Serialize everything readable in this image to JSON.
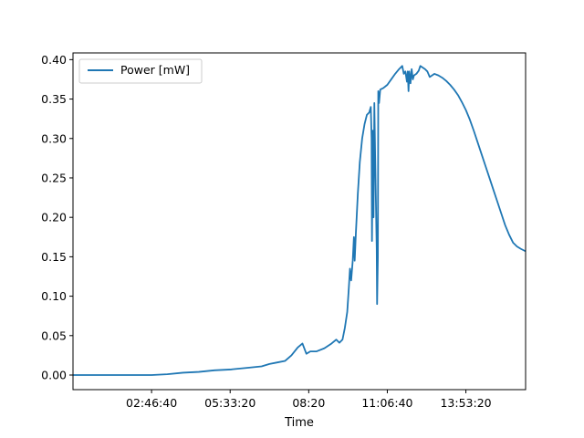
{
  "chart_data": {
    "type": "line",
    "title": "",
    "xlabel": "Time",
    "ylabel": "",
    "grid": false,
    "legend_position": "top-left",
    "x_unit": "seconds",
    "xlim": [
      0,
      57600
    ],
    "ylim": [
      -0.0185,
      0.4085
    ],
    "x_ticks": [
      {
        "value": 10000,
        "label": "02:46:40"
      },
      {
        "value": 20000,
        "label": "05:33:20"
      },
      {
        "value": 30000,
        "label": "08:20"
      },
      {
        "value": 40000,
        "label": "11:06:40"
      },
      {
        "value": 50000,
        "label": "13:53:20"
      }
    ],
    "y_ticks": [
      {
        "value": 0.0,
        "label": "0.00"
      },
      {
        "value": 0.05,
        "label": "0.05"
      },
      {
        "value": 0.1,
        "label": "0.10"
      },
      {
        "value": 0.15,
        "label": "0.15"
      },
      {
        "value": 0.2,
        "label": "0.20"
      },
      {
        "value": 0.25,
        "label": "0.25"
      },
      {
        "value": 0.3,
        "label": "0.30"
      },
      {
        "value": 0.35,
        "label": "0.35"
      },
      {
        "value": 0.4,
        "label": "0.40"
      }
    ],
    "series": [
      {
        "name": "Power [mW]",
        "color": "#1f77b4",
        "points": [
          [
            0,
            0.0
          ],
          [
            10000,
            0.0
          ],
          [
            12000,
            0.001
          ],
          [
            14000,
            0.003
          ],
          [
            16000,
            0.004
          ],
          [
            18000,
            0.006
          ],
          [
            20000,
            0.007
          ],
          [
            22000,
            0.009
          ],
          [
            24000,
            0.011
          ],
          [
            25000,
            0.014
          ],
          [
            26000,
            0.016
          ],
          [
            27000,
            0.018
          ],
          [
            27800,
            0.025
          ],
          [
            28600,
            0.035
          ],
          [
            29200,
            0.04
          ],
          [
            29700,
            0.027
          ],
          [
            30200,
            0.03
          ],
          [
            31000,
            0.03
          ],
          [
            32000,
            0.034
          ],
          [
            32900,
            0.04
          ],
          [
            33500,
            0.045
          ],
          [
            33900,
            0.041
          ],
          [
            34300,
            0.045
          ],
          [
            34600,
            0.06
          ],
          [
            34900,
            0.08
          ],
          [
            35100,
            0.11
          ],
          [
            35250,
            0.135
          ],
          [
            35400,
            0.12
          ],
          [
            35600,
            0.145
          ],
          [
            35750,
            0.175
          ],
          [
            35850,
            0.145
          ],
          [
            36000,
            0.18
          ],
          [
            36100,
            0.2
          ],
          [
            36250,
            0.23
          ],
          [
            36500,
            0.27
          ],
          [
            36800,
            0.3
          ],
          [
            37100,
            0.318
          ],
          [
            37400,
            0.33
          ],
          [
            37700,
            0.333
          ],
          [
            37900,
            0.34
          ],
          [
            38000,
            0.3
          ],
          [
            38050,
            0.17
          ],
          [
            38150,
            0.31
          ],
          [
            38250,
            0.2
          ],
          [
            38350,
            0.345
          ],
          [
            38450,
            0.28
          ],
          [
            38550,
            0.22
          ],
          [
            38650,
            0.16
          ],
          [
            38700,
            0.09
          ],
          [
            38800,
            0.15
          ],
          [
            38850,
            0.36
          ],
          [
            38950,
            0.345
          ],
          [
            39100,
            0.362
          ],
          [
            39500,
            0.364
          ],
          [
            40000,
            0.368
          ],
          [
            40500,
            0.375
          ],
          [
            41000,
            0.382
          ],
          [
            41500,
            0.388
          ],
          [
            41900,
            0.392
          ],
          [
            42100,
            0.382
          ],
          [
            42300,
            0.385
          ],
          [
            42500,
            0.372
          ],
          [
            42600,
            0.385
          ],
          [
            42700,
            0.36
          ],
          [
            42800,
            0.385
          ],
          [
            42950,
            0.37
          ],
          [
            43100,
            0.388
          ],
          [
            43250,
            0.375
          ],
          [
            43400,
            0.38
          ],
          [
            43700,
            0.382
          ],
          [
            44000,
            0.386
          ],
          [
            44200,
            0.392
          ],
          [
            44500,
            0.39
          ],
          [
            44800,
            0.388
          ],
          [
            45100,
            0.385
          ],
          [
            45400,
            0.378
          ],
          [
            45700,
            0.38
          ],
          [
            46000,
            0.382
          ],
          [
            46500,
            0.38
          ],
          [
            47000,
            0.377
          ],
          [
            47500,
            0.373
          ],
          [
            48000,
            0.368
          ],
          [
            48500,
            0.362
          ],
          [
            49000,
            0.355
          ],
          [
            49500,
            0.346
          ],
          [
            50000,
            0.336
          ],
          [
            50500,
            0.324
          ],
          [
            51000,
            0.31
          ],
          [
            51500,
            0.295
          ],
          [
            52000,
            0.28
          ],
          [
            52500,
            0.265
          ],
          [
            53000,
            0.25
          ],
          [
            53500,
            0.235
          ],
          [
            54000,
            0.22
          ],
          [
            54500,
            0.205
          ],
          [
            55000,
            0.19
          ],
          [
            55500,
            0.178
          ],
          [
            56000,
            0.168
          ],
          [
            56500,
            0.163
          ],
          [
            57000,
            0.16
          ],
          [
            57600,
            0.157
          ]
        ]
      }
    ]
  }
}
